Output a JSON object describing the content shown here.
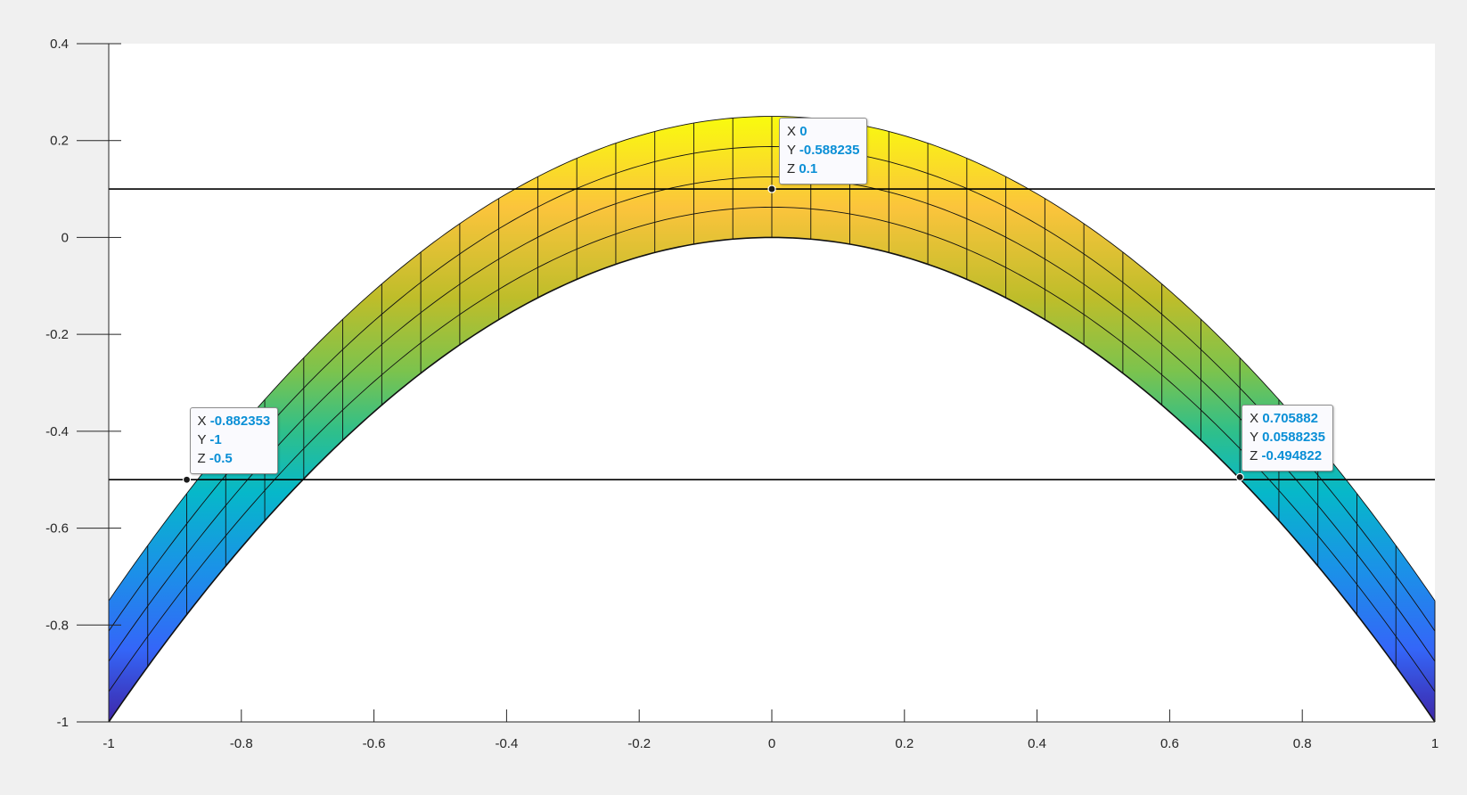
{
  "chart_data": {
    "type": "surface",
    "xlim": [
      -1,
      1
    ],
    "ylim": [
      -1,
      0.4
    ],
    "x_ticks": [
      "-1",
      "-0.8",
      "-0.6",
      "-0.4",
      "-0.2",
      "0",
      "0.2",
      "0.4",
      "0.6",
      "0.8",
      "1"
    ],
    "y_ticks": [
      "0.4",
      "0.2",
      "0",
      "-0.2",
      "-0.4",
      "-0.6",
      "-0.8",
      "-1"
    ],
    "x_tick_values": [
      -1,
      -0.8,
      -0.6,
      -0.4,
      -0.2,
      0,
      0.2,
      0.4,
      0.6,
      0.8,
      1
    ],
    "y_tick_values": [
      0.4,
      0.2,
      0,
      -0.2,
      -0.4,
      -0.6,
      -0.8,
      -1
    ],
    "surface": {
      "formula_lower": "z = -x^2",
      "band_height_at_center": 0.25,
      "band_height_at_edges": 0.25,
      "colormap": "parula"
    },
    "reference_lines": [
      0.1,
      -0.5
    ],
    "grid": false,
    "legend": "none",
    "datatips": [
      {
        "x": 0,
        "y": -0.588235,
        "z": 0.1,
        "X": "0",
        "Y": "-0.588235",
        "Z": "0.1"
      },
      {
        "x": -0.882353,
        "y": -1,
        "z": -0.5,
        "X": "-0.882353",
        "Y": "-1",
        "Z": "-0.5"
      },
      {
        "x": 0.705882,
        "y": 0.0588235,
        "z": -0.494822,
        "X": "0.705882",
        "Y": "0.0588235",
        "Z": "-0.494822"
      }
    ],
    "labels": {
      "X": "X",
      "Y": "Y",
      "Z": "Z"
    }
  }
}
